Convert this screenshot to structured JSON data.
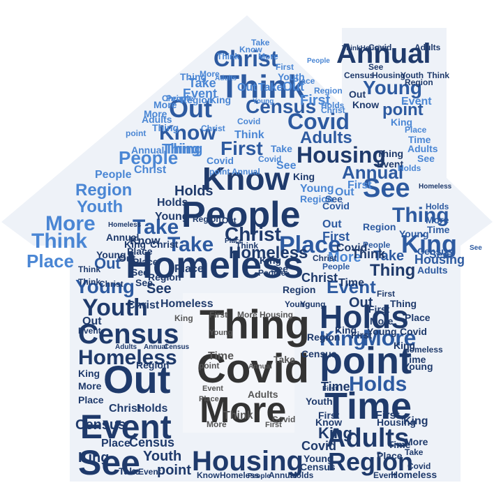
{
  "colors": {
    "dark_blue": "#1f3a6b",
    "mid_blue": "#2d5aa0",
    "light_blue": "#4a86d4",
    "dark_gray": "#333333",
    "mid_gray": "#555555",
    "house_fill": "#eef2f8",
    "window_fill": "#ffffff"
  },
  "words": {
    "homeless": "Homeless",
    "people": "People",
    "know": "Know",
    "think": "Think",
    "out": "Out",
    "christ": "Christ",
    "annual": "Annual",
    "young": "Young",
    "point": "point",
    "see": "See",
    "king": "King",
    "covid": "Covid",
    "adults": "Adults",
    "first": "First",
    "thing": "Thing",
    "census": "Census",
    "housing": "Housing",
    "more": "More",
    "time": "Time",
    "holds": "Holds",
    "event": "Event",
    "region": "Region",
    "youth": "Youth",
    "place": "Place",
    "take": "Take"
  }
}
